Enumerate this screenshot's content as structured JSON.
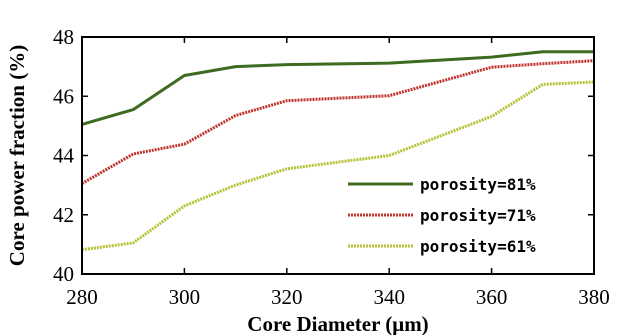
{
  "chart_data": {
    "type": "line",
    "xlabel": "Core Diameter (μm)",
    "ylabel": "Core power fraction (%)",
    "xlim": [
      280,
      380
    ],
    "ylim": [
      40,
      48
    ],
    "xticks": [
      280,
      300,
      320,
      340,
      360,
      380
    ],
    "yticks": [
      40,
      42,
      44,
      46,
      48
    ],
    "x": [
      280,
      290,
      300,
      310,
      320,
      340,
      360,
      370,
      380
    ],
    "legend_position": "lower-right",
    "grid": false,
    "series": [
      {
        "name": "porosity=81%",
        "color": "#3d6b1f",
        "style": "solid",
        "values": [
          45.05,
          45.55,
          46.7,
          47.0,
          47.07,
          47.12,
          47.32,
          47.5,
          47.5
        ]
      },
      {
        "name": "porosity=71%",
        "color": "#c0342d",
        "style": "dotted",
        "values": [
          43.05,
          44.05,
          44.38,
          45.35,
          45.85,
          46.02,
          46.98,
          47.1,
          47.2
        ]
      },
      {
        "name": "porosity=61%",
        "color": "#b5c234",
        "style": "dotted",
        "values": [
          40.82,
          41.05,
          42.3,
          43.0,
          43.55,
          44.0,
          45.32,
          46.4,
          46.48
        ]
      }
    ]
  }
}
